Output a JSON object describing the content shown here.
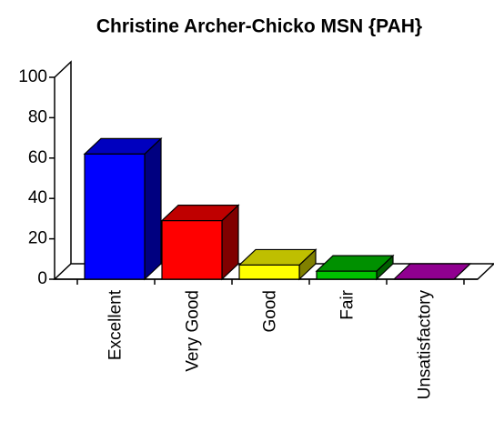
{
  "chart_data": {
    "type": "bar3d",
    "title": "Christine Archer-Chicko MSN {PAH}",
    "categories": [
      "Excellent",
      "Very Good",
      "Good",
      "Fair",
      "Unsatisfactory"
    ],
    "values": [
      62,
      29,
      7,
      4,
      0
    ],
    "colors": [
      "#0000ff",
      "#ff0000",
      "#ffff00",
      "#00c000",
      "#c000c0"
    ],
    "ylim": [
      0,
      100
    ],
    "yticks": [
      0,
      20,
      40,
      60,
      80,
      100
    ]
  }
}
